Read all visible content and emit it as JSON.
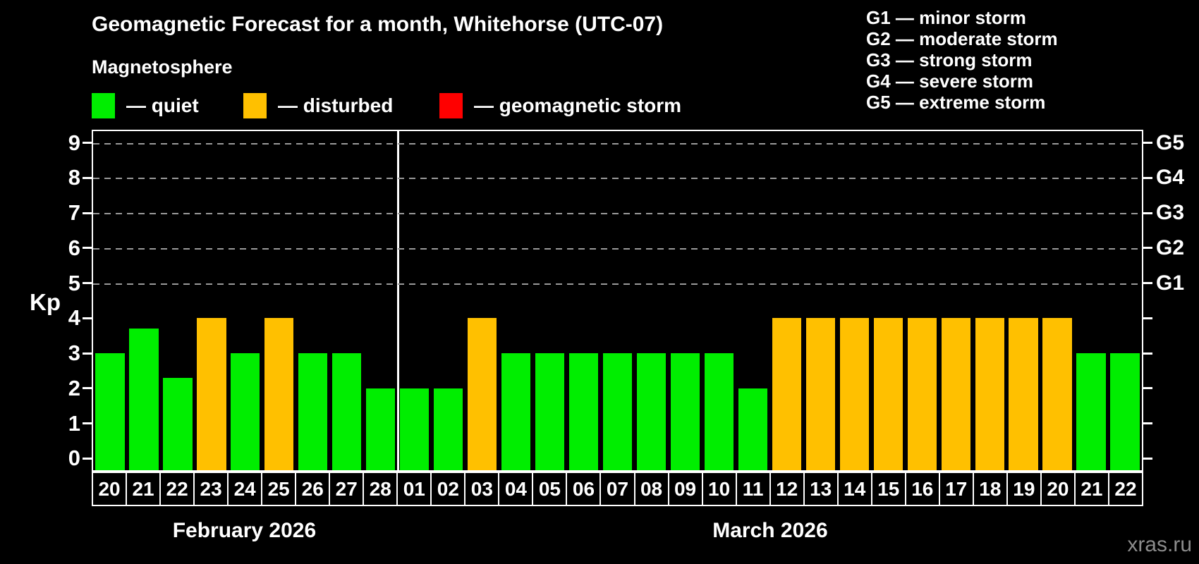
{
  "header": {
    "title": "Geomagnetic Forecast for a month, Whitehorse (UTC-07)",
    "magnetosphere_label": "Magnetosphere"
  },
  "legend": {
    "items": [
      {
        "key": "quiet",
        "label": "— quiet"
      },
      {
        "key": "disturbed",
        "label": "— disturbed"
      },
      {
        "key": "storm",
        "label": "— geomagnetic storm"
      }
    ]
  },
  "g_legend": {
    "lines": [
      "G1 — minor storm",
      "G2 — moderate storm",
      "G3 — strong storm",
      "G4 — severe storm",
      "G5 — extreme storm"
    ]
  },
  "colors": {
    "quiet": "#00ee00",
    "disturbed": "#ffc000",
    "storm": "#ff0000",
    "grid": "#9a9a9a",
    "watermark": "#8c8c8c"
  },
  "watermark": "xras.ru",
  "chart_data": {
    "type": "bar",
    "title": "Geomagnetic Forecast for a month, Whitehorse (UTC-07)",
    "xlabel": "",
    "ylabel": "Kp",
    "ylim": [
      -0.3333,
      9.3333
    ],
    "yticks": [
      0,
      1,
      2,
      3,
      4,
      5,
      6,
      7,
      8,
      9
    ],
    "gridlines_at": [
      5,
      6,
      7,
      8,
      9
    ],
    "grid": "dashed, horizontal, at G-storm levels only",
    "legend_position": "top-left (quiet/disturbed/storm), top-right (G scale)",
    "right_axis": [
      {
        "label": "G5",
        "kp": 9
      },
      {
        "label": "G4",
        "kp": 8
      },
      {
        "label": "G3",
        "kp": 7
      },
      {
        "label": "G2",
        "kp": 6
      },
      {
        "label": "G1",
        "kp": 5
      }
    ],
    "months": [
      {
        "label": "February 2026",
        "days": [
          {
            "day": "20",
            "kp": 3,
            "state": "quiet"
          },
          {
            "day": "21",
            "kp": 3.7,
            "state": "quiet"
          },
          {
            "day": "22",
            "kp": 2.3,
            "state": "quiet"
          },
          {
            "day": "23",
            "kp": 4,
            "state": "disturbed"
          },
          {
            "day": "24",
            "kp": 3,
            "state": "quiet"
          },
          {
            "day": "25",
            "kp": 4,
            "state": "disturbed"
          },
          {
            "day": "26",
            "kp": 3,
            "state": "quiet"
          },
          {
            "day": "27",
            "kp": 3,
            "state": "quiet"
          },
          {
            "day": "28",
            "kp": 2,
            "state": "quiet"
          }
        ]
      },
      {
        "label": "March 2026",
        "days": [
          {
            "day": "01",
            "kp": 2,
            "state": "quiet"
          },
          {
            "day": "02",
            "kp": 2,
            "state": "quiet"
          },
          {
            "day": "03",
            "kp": 4,
            "state": "disturbed"
          },
          {
            "day": "04",
            "kp": 3,
            "state": "quiet"
          },
          {
            "day": "05",
            "kp": 3,
            "state": "quiet"
          },
          {
            "day": "06",
            "kp": 3,
            "state": "quiet"
          },
          {
            "day": "07",
            "kp": 3,
            "state": "quiet"
          },
          {
            "day": "08",
            "kp": 3,
            "state": "quiet"
          },
          {
            "day": "09",
            "kp": 3,
            "state": "quiet"
          },
          {
            "day": "10",
            "kp": 3,
            "state": "quiet"
          },
          {
            "day": "11",
            "kp": 2,
            "state": "quiet"
          },
          {
            "day": "12",
            "kp": 4,
            "state": "disturbed"
          },
          {
            "day": "13",
            "kp": 4,
            "state": "disturbed"
          },
          {
            "day": "14",
            "kp": 4,
            "state": "disturbed"
          },
          {
            "day": "15",
            "kp": 4,
            "state": "disturbed"
          },
          {
            "day": "16",
            "kp": 4,
            "state": "disturbed"
          },
          {
            "day": "17",
            "kp": 4,
            "state": "disturbed"
          },
          {
            "day": "18",
            "kp": 4,
            "state": "disturbed"
          },
          {
            "day": "19",
            "kp": 4,
            "state": "disturbed"
          },
          {
            "day": "20",
            "kp": 4,
            "state": "disturbed"
          },
          {
            "day": "21",
            "kp": 3,
            "state": "quiet"
          },
          {
            "day": "22",
            "kp": 3,
            "state": "quiet"
          }
        ]
      }
    ],
    "categories": [
      "20",
      "21",
      "22",
      "23",
      "24",
      "25",
      "26",
      "27",
      "28",
      "01",
      "02",
      "03",
      "04",
      "05",
      "06",
      "07",
      "08",
      "09",
      "10",
      "11",
      "12",
      "13",
      "14",
      "15",
      "16",
      "17",
      "18",
      "19",
      "20",
      "21",
      "22"
    ],
    "values": [
      3,
      3.7,
      2.3,
      4,
      3,
      4,
      3,
      3,
      2,
      2,
      2,
      4,
      3,
      3,
      3,
      3,
      3,
      3,
      3,
      2,
      4,
      4,
      4,
      4,
      4,
      4,
      4,
      4,
      4,
      3,
      3
    ]
  }
}
